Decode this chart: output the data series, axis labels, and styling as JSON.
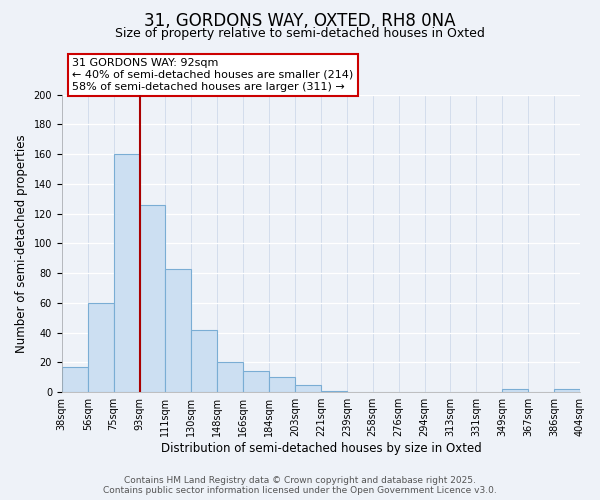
{
  "title": "31, GORDONS WAY, OXTED, RH8 0NA",
  "subtitle": "Size of property relative to semi-detached houses in Oxted",
  "xlabel": "Distribution of semi-detached houses by size in Oxted",
  "ylabel": "Number of semi-detached properties",
  "bar_values": [
    17,
    60,
    160,
    126,
    83,
    42,
    20,
    14,
    10,
    5,
    1,
    0,
    0,
    0,
    0,
    0,
    0,
    2,
    0,
    2
  ],
  "categories": [
    "38sqm",
    "56sqm",
    "75sqm",
    "93sqm",
    "111sqm",
    "130sqm",
    "148sqm",
    "166sqm",
    "184sqm",
    "203sqm",
    "221sqm",
    "239sqm",
    "258sqm",
    "276sqm",
    "294sqm",
    "313sqm",
    "331sqm",
    "349sqm",
    "367sqm",
    "386sqm",
    "404sqm"
  ],
  "bar_color": "#ccdff2",
  "bar_edge_color": "#7aadd4",
  "vline_color": "#aa0000",
  "annotation_title": "31 GORDONS WAY: 92sqm",
  "annotation_line1": "← 40% of semi-detached houses are smaller (214)",
  "annotation_line2": "58% of semi-detached houses are larger (311) →",
  "annotation_box_color": "#ffffff",
  "annotation_box_edge": "#cc0000",
  "ylim": [
    0,
    200
  ],
  "yticks": [
    0,
    20,
    40,
    60,
    80,
    100,
    120,
    140,
    160,
    180,
    200
  ],
  "footer_line1": "Contains HM Land Registry data © Crown copyright and database right 2025.",
  "footer_line2": "Contains public sector information licensed under the Open Government Licence v3.0.",
  "bg_color": "#eef2f8",
  "title_fontsize": 12,
  "subtitle_fontsize": 9,
  "axis_label_fontsize": 8.5,
  "tick_fontsize": 7,
  "footer_fontsize": 6.5,
  "annotation_fontsize": 8
}
